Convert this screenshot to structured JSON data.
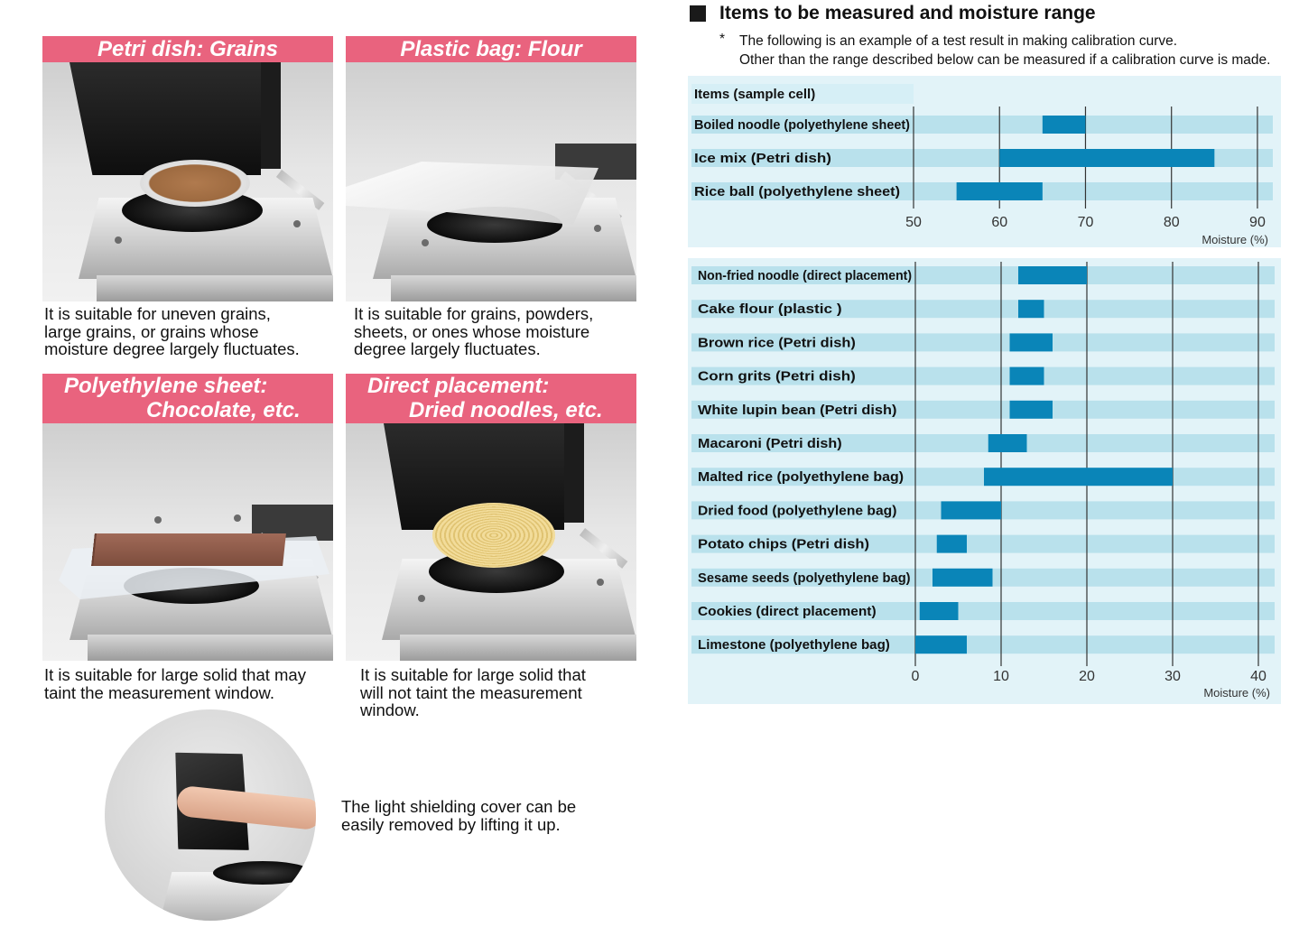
{
  "panels": [
    {
      "title_lines": [
        "Petri dish: Grains"
      ],
      "caption_lines": [
        "It is suitable for uneven grains,",
        "large grains, or grains whose",
        "moisture degree largely fluctuates."
      ]
    },
    {
      "title_lines": [
        "Plastic bag: Flour"
      ],
      "caption_lines": [
        "It is suitable for grains, powders,",
        "sheets, or ones whose moisture",
        "degree largely fluctuates."
      ]
    },
    {
      "title_lines": [
        "Polyethylene sheet:",
        "Chocolate, etc."
      ],
      "caption_lines": [
        "It is suitable for large solid that may",
        "taint the measurement window."
      ]
    },
    {
      "title_lines": [
        "Direct placement:",
        "Dried noodles, etc."
      ],
      "caption_lines": [
        "It is suitable for large solid that",
        "will not taint the measurement",
        "window."
      ]
    }
  ],
  "cover_caption_lines": [
    "The light shielding cover can be",
    "easily removed by lifting it up."
  ],
  "section_title": "Items to be measured and moisture range",
  "note_mark": "*",
  "note_lines": [
    "The following is an example of a test result in making calibration curve.",
    "Other than the range described below can be measured if a calibration curve is made."
  ],
  "colors": {
    "title_bar": "#e9637e",
    "chart_bg": "#e2f3f8",
    "row_bg": "#b9e1ec",
    "bar": "#0a85b8"
  },
  "chart_data": [
    {
      "type": "bar",
      "orientation": "horizontal-range",
      "header": "Items (sample cell)",
      "categories": [
        "Boiled noodle (polyethylene sheet)",
        "Ice mix (Petri dish)",
        "Rice ball (polyethylene sheet)"
      ],
      "ranges": [
        [
          65,
          70
        ],
        [
          60,
          85
        ],
        [
          55,
          65
        ]
      ],
      "xlim": [
        50,
        92
      ],
      "xticks": [
        "50",
        "60",
        "70",
        "80",
        "90"
      ],
      "xlabel": "Moisture (%)",
      "grid": true
    },
    {
      "type": "bar",
      "orientation": "horizontal-range",
      "categories": [
        "Non-fried noodle (direct placement)",
        "Cake flour (plastic )",
        "Brown rice (Petri dish)",
        "Corn grits (Petri dish)",
        "White lupin bean (Petri dish)",
        "Macaroni (Petri dish)",
        "Malted rice (polyethylene bag)",
        "Dried food (polyethylene bag)",
        "Potato chips (Petri dish)",
        "Sesame seeds (polyethylene bag)",
        "Cookies (direct placement)",
        "Limestone (polyethylene bag)"
      ],
      "ranges": [
        [
          12,
          20
        ],
        [
          12,
          15
        ],
        [
          11,
          16
        ],
        [
          11,
          15
        ],
        [
          11,
          16
        ],
        [
          8.5,
          13
        ],
        [
          8,
          30
        ],
        [
          3,
          10
        ],
        [
          2.5,
          6
        ],
        [
          2,
          9
        ],
        [
          0.5,
          5
        ],
        [
          0,
          6
        ]
      ],
      "xlim": [
        0,
        42
      ],
      "xticks": [
        "0",
        "10",
        "20",
        "30",
        "40"
      ],
      "xlabel": "Moisture (%)",
      "grid": true
    }
  ]
}
